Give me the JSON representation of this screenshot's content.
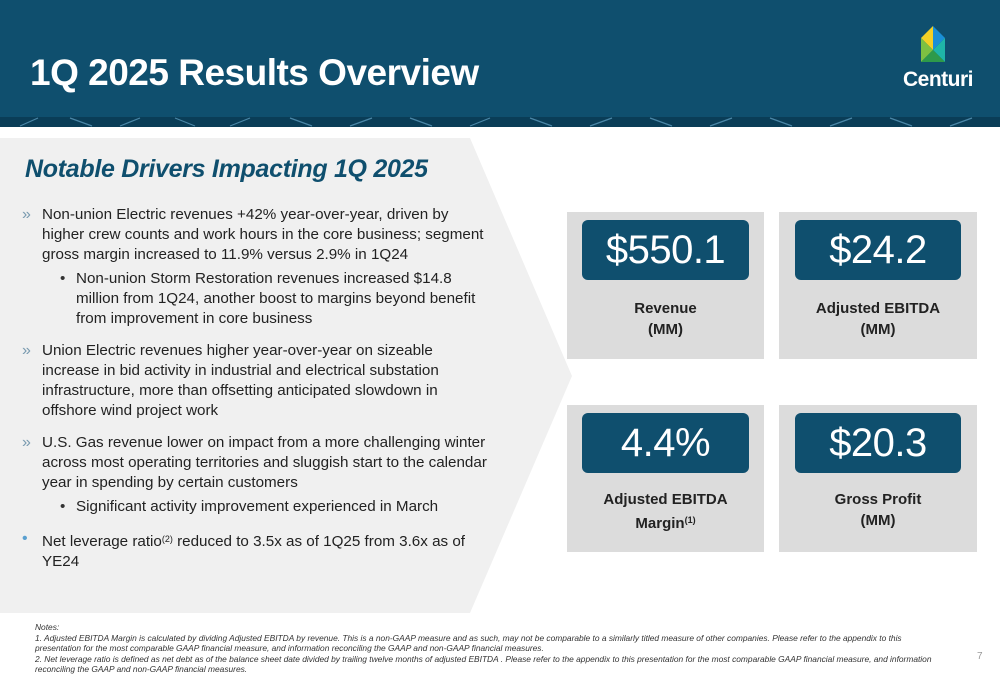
{
  "header": {
    "title": "1Q 2025 Results Overview",
    "logo_text": "Centuri"
  },
  "drivers": {
    "heading": "Notable Drivers Impacting 1Q 2025",
    "bullet_mark": "»",
    "items": [
      {
        "text": "Non-union Electric revenues +42% year-over-year, driven by higher crew counts and work hours in the core business; segment gross margin increased to 11.9% versus 2.9% in 1Q24",
        "sub": "Non-union Storm Restoration revenues increased $14.8 million from 1Q24, another boost to margins beyond benefit from improvement in core business"
      },
      {
        "text": "Union Electric revenues higher year-over-year on sizeable increase in bid activity in industrial and electrical substation infrastructure, more than offsetting anticipated slowdown in offshore wind project work"
      },
      {
        "text": "U.S. Gas revenue lower on impact from a more challenging winter across most operating territories and sluggish start to the calendar year in spending by certain customers",
        "sub": "Significant activity improvement experienced in March"
      },
      {
        "text_a": "Net leverage ratio",
        "sup": "(2)",
        "text_b": " reduced to 3.5x as of 1Q25 from 3.6x as of YE24"
      }
    ]
  },
  "kpis": [
    {
      "value": "$550.1",
      "label_line1": "Revenue",
      "label_line2": "(MM)"
    },
    {
      "value": "$24.2",
      "label_line1": "Adjusted EBITDA",
      "label_line2": "(MM)"
    },
    {
      "value": "4.4%",
      "label_line1": "Adjusted EBITDA",
      "label_line2": "Margin",
      "label_sup": "(1)"
    },
    {
      "value": "$20.3",
      "label_line1": "Gross Profit",
      "label_line2": "(MM)"
    }
  ],
  "notes": {
    "heading": "Notes:",
    "note1": "1. Adjusted EBITDA Margin is calculated by dividing Adjusted EBITDA by revenue. This is a non-GAAP measure and as such, may not be comparable to a similarly titled measure of other companies. Please refer to the appendix to this presentation for the most comparable GAAP financial measure, and information reconciling the GAAP and non-GAAP financial measures.",
    "note2": "2. Net leverage ratio is defined as net debt as of the balance sheet date divided by trailing twelve months of adjusted EBITDA . Please refer to the appendix to this presentation for the most comparable GAAP financial measure, and information reconciling the GAAP and non-GAAP financial measures."
  },
  "page_number": "7",
  "colors": {
    "brand_navy": "#0f4f6e",
    "card_gray": "#dcdcdc",
    "panel_gray": "#f0f0f0",
    "bullet_accent": "#7a9bb0"
  }
}
